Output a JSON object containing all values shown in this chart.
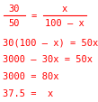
{
  "text_color": "#ff0000",
  "bg_color": "#ffffff",
  "fontsize": 7.5,
  "font_family": "monospace",
  "frac1_num": "30",
  "frac1_den": "50",
  "frac2_num": "x",
  "frac2_den": "100 – x",
  "eq_sign": "=",
  "rows": [
    "30(100 – x) = 50x",
    "3000 – 30x = 50x",
    "3000 = 80x",
    "37.5 =  x"
  ],
  "figsize": [
    1.09,
    1.14
  ],
  "dpi": 100
}
